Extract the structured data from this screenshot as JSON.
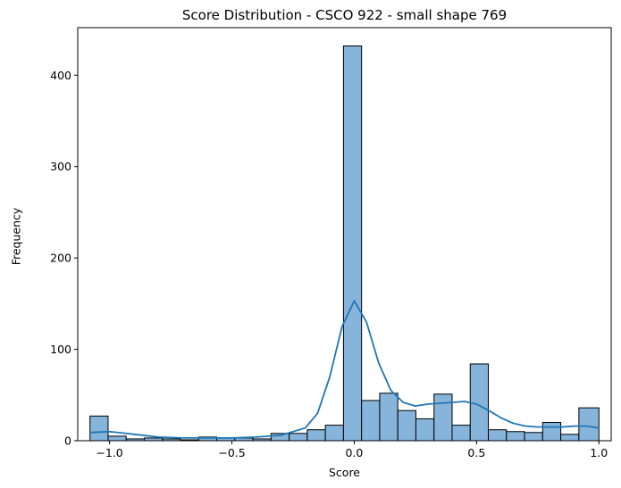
{
  "chart_data": {
    "type": "histogram",
    "title": "Score Distribution - CSCO 922 - small shape 769",
    "xlabel": "Score",
    "ylabel": "Frequency",
    "xlim": [
      -1.13,
      1.05
    ],
    "ylim": [
      0,
      452
    ],
    "x_ticks": [
      -1.0,
      -0.5,
      0.0,
      0.5,
      1.0
    ],
    "x_tick_labels": [
      "−1.0",
      "−0.5",
      "0.0",
      "0.5",
      "1.0"
    ],
    "y_ticks": [
      0,
      100,
      200,
      300,
      400
    ],
    "y_tick_labels": [
      "0",
      "100",
      "200",
      "300",
      "400"
    ],
    "bin_edges": [
      -1.08,
      -1.006,
      -0.932,
      -0.858,
      -0.784,
      -0.71,
      -0.636,
      -0.562,
      -0.488,
      -0.414,
      -0.34,
      -0.266,
      -0.192,
      -0.118,
      -0.044,
      0.03,
      0.104,
      0.178,
      0.252,
      0.326,
      0.4,
      0.474,
      0.548,
      0.622,
      0.696,
      0.77,
      0.844,
      0.918,
      1.0
    ],
    "counts": [
      27,
      5,
      2,
      3,
      2,
      1,
      4,
      3,
      3,
      2,
      8,
      8,
      12,
      17,
      432,
      44,
      52,
      33,
      24,
      51,
      17,
      84,
      12,
      10,
      9,
      20,
      7,
      36
    ],
    "kde": {
      "x": [
        -1.08,
        -1.0,
        -0.9,
        -0.8,
        -0.7,
        -0.6,
        -0.5,
        -0.4,
        -0.3,
        -0.2,
        -0.15,
        -0.1,
        -0.05,
        0.0,
        0.05,
        0.1,
        0.15,
        0.2,
        0.25,
        0.3,
        0.35,
        0.4,
        0.45,
        0.5,
        0.55,
        0.6,
        0.65,
        0.7,
        0.75,
        0.8,
        0.85,
        0.9,
        0.95,
        1.0
      ],
      "y": [
        9,
        10,
        7,
        4,
        3,
        3,
        3,
        4,
        6,
        14,
        30,
        70,
        125,
        153,
        130,
        85,
        55,
        42,
        38,
        40,
        41,
        42,
        43,
        40,
        33,
        25,
        19,
        16,
        15,
        15,
        15,
        16,
        16,
        14
      ]
    },
    "bar_color": "#86b4da",
    "bar_edge_color": "#000000",
    "line_color": "#1f77b4",
    "grid": false,
    "legend": "none"
  }
}
